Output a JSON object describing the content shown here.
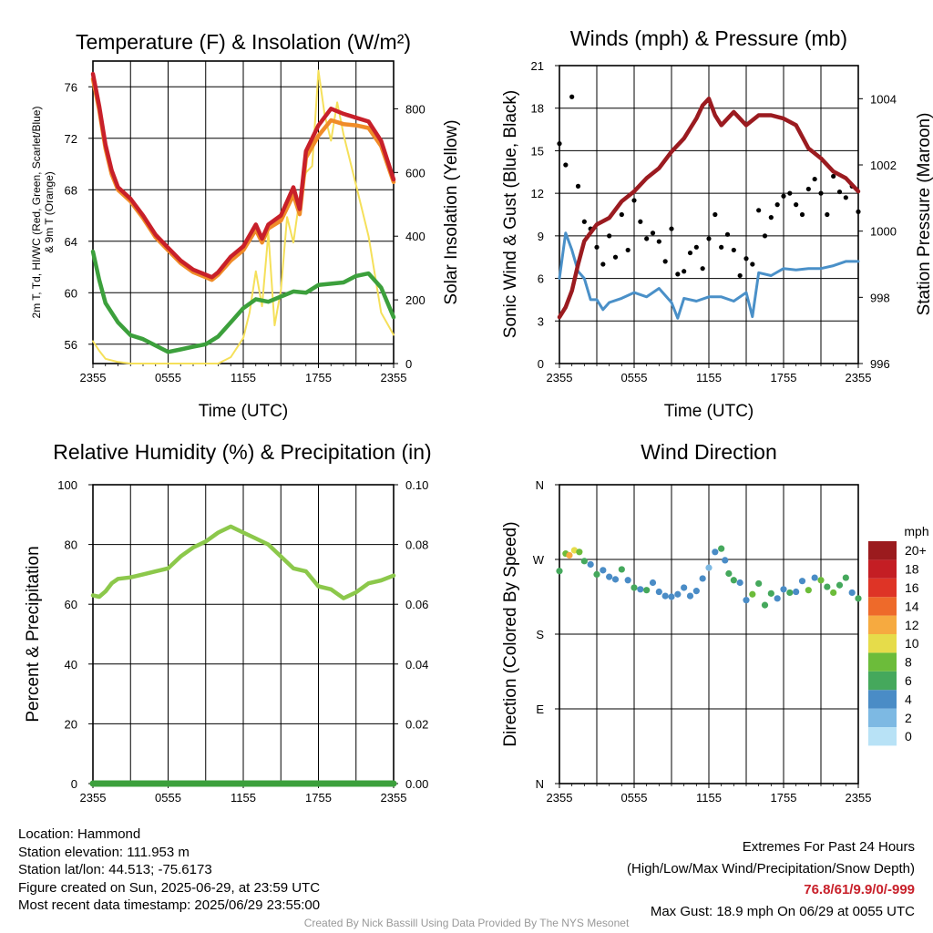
{
  "panels": [
    {
      "title": "Temperature (F) & Insolation (W/m²)"
    },
    {
      "title": "Winds (mph) & Pressure (mb)"
    },
    {
      "title": "Relative Humidity (%) & Precipitation (in)"
    },
    {
      "title": "Wind Direction"
    }
  ],
  "footer": {
    "location": "Location: Hammond",
    "elevation": "Station elevation: 111.953 m",
    "latlon": "Station lat/lon: 44.513; -75.6173",
    "created": "Figure created on Sun, 2025-06-29, at 23:59 UTC",
    "recent": "Most recent data timestamp: 2025/06/29 23:55:00",
    "extremes_title": "Extremes For Past 24 Hours",
    "extremes_sub": "(High/Low/Max Wind/Precipitation/Snow Depth)",
    "extremes_vals": "76.8/61/9.9/0/-999",
    "max_gust": "Max Gust: 18.9 mph On 06/29 at 0055 UTC",
    "credit": "Created By Nick Bassill Using Data Provided By The NYS Mesonet"
  },
  "chart_data": [
    {
      "type": "line",
      "title": "Temperature (F) & Insolation (W/m²)",
      "xlabel": "Time (UTC)",
      "ylabel": "2m T, Td, HI/WC (Red, Green, Scarlet/Blue) & 9m T (Orange)",
      "ylabel_right": "Solar Insolation (Yellow)",
      "x_ticks": [
        "2355",
        "0555",
        "1155",
        "1755",
        "2355"
      ],
      "xlim": [
        0,
        24
      ],
      "ylim": [
        54.5,
        78
      ],
      "y_ticks": [
        56,
        60,
        64,
        68,
        72,
        76
      ],
      "ylim_right": [
        0,
        950
      ],
      "y_ticks_right": [
        0,
        200,
        400,
        600,
        800
      ],
      "grid": true,
      "series": [
        {
          "name": "2m T",
          "axis": "left",
          "color": "#c8202a",
          "x": [
            0,
            0.5,
            1,
            1.5,
            2,
            3,
            4,
            5,
            6,
            7,
            8,
            9,
            9.5,
            10,
            11,
            12,
            13,
            13.5,
            14,
            15,
            16,
            16.5,
            17,
            18,
            19,
            20,
            21,
            22,
            23,
            24
          ],
          "values": [
            77,
            74.5,
            71.5,
            69.5,
            68.2,
            67.3,
            66,
            64.5,
            63.5,
            62.5,
            61.8,
            61.4,
            61.2,
            61.6,
            62.8,
            63.6,
            65.3,
            64.2,
            65.3,
            66,
            68.2,
            66.5,
            71,
            73,
            74.3,
            73.9,
            73.6,
            73.3,
            71.8,
            68.8
          ]
        },
        {
          "name": "9m T",
          "axis": "left",
          "color": "#f08c28",
          "x": [
            0,
            0.5,
            1,
            1.5,
            2,
            3,
            4,
            5,
            6,
            7,
            8,
            9,
            9.5,
            10,
            11,
            12,
            13,
            13.5,
            14,
            15,
            16,
            16.5,
            17,
            18,
            19,
            20,
            21,
            22,
            23,
            24
          ],
          "values": [
            76.6,
            74.2,
            71.2,
            69.2,
            68,
            67.1,
            65.8,
            64.3,
            63.3,
            62.3,
            61.6,
            61.2,
            61,
            61.4,
            62.5,
            63.3,
            64.9,
            63.9,
            65,
            65.6,
            67.6,
            66.1,
            70.5,
            72.2,
            73.4,
            73.1,
            73,
            72.8,
            71.4,
            68.6
          ]
        },
        {
          "name": "Td",
          "axis": "left",
          "color": "#3ca03c",
          "x": [
            0,
            0.5,
            1,
            2,
            3,
            4,
            5,
            6,
            7,
            8,
            9,
            10,
            11,
            12,
            13,
            14,
            15,
            16,
            17,
            18,
            19,
            20,
            21,
            22,
            23,
            24
          ],
          "values": [
            63.2,
            61,
            59.2,
            57.7,
            56.7,
            56.4,
            55.9,
            55.4,
            55.6,
            55.8,
            56,
            56.6,
            57.7,
            58.8,
            59.5,
            59.3,
            59.7,
            60.1,
            60,
            60.6,
            60.7,
            60.8,
            61.3,
            61.5,
            60.4,
            58.1
          ]
        },
        {
          "name": "Solar Insolation",
          "axis": "right",
          "color": "#f5e05a",
          "x": [
            0,
            0.5,
            1,
            2,
            3,
            4,
            5,
            6,
            7,
            8,
            9,
            10,
            11,
            12,
            12.5,
            13,
            13.5,
            14,
            14.5,
            15,
            15.5,
            16,
            16.5,
            17,
            17.5,
            18,
            18.5,
            19,
            19.5,
            20,
            21,
            22,
            23,
            24
          ],
          "values": [
            70,
            40,
            15,
            5,
            0,
            0,
            0,
            0,
            0,
            0,
            0,
            0,
            20,
            80,
            160,
            290,
            180,
            410,
            120,
            230,
            460,
            380,
            520,
            600,
            620,
            920,
            780,
            700,
            820,
            720,
            560,
            400,
            160,
            90
          ]
        }
      ]
    },
    {
      "type": "line",
      "title": "Winds (mph) & Pressure (mb)",
      "xlabel": "Time (UTC)",
      "ylabel": "Sonic Wind & Gust (Blue, Black)",
      "ylabel_right": "Station Pressure (Maroon)",
      "x_ticks": [
        "2355",
        "0555",
        "1155",
        "1755",
        "2355"
      ],
      "xlim": [
        0,
        24
      ],
      "ylim": [
        0,
        21
      ],
      "y_ticks": [
        0,
        3,
        6,
        9,
        12,
        15,
        18,
        21
      ],
      "ylim_right": [
        996,
        1005
      ],
      "y_ticks_right": [
        996,
        998,
        1000,
        1002,
        1004
      ],
      "grid": true,
      "series": [
        {
          "name": "Sonic Wind",
          "axis": "left",
          "color": "#4a90c8",
          "x": [
            0,
            0.5,
            1,
            1.5,
            2,
            2.5,
            3,
            3.5,
            4,
            5,
            6,
            7,
            8,
            9,
            9.5,
            10,
            11,
            12,
            13,
            14,
            15,
            15.5,
            16,
            17,
            18,
            19,
            20,
            21,
            22,
            23,
            24
          ],
          "values": [
            6,
            9.2,
            8,
            6.5,
            6,
            4.5,
            4.5,
            3.8,
            4.3,
            4.6,
            5,
            4.7,
            5.3,
            4.3,
            3.2,
            4.6,
            4.4,
            4.7,
            4.7,
            4.4,
            5,
            3.3,
            6.4,
            6.2,
            6.7,
            6.6,
            6.7,
            6.7,
            6.9,
            7.2,
            7.2
          ]
        },
        {
          "name": "Gust",
          "axis": "left",
          "color": "#000000",
          "x": [
            0,
            0.5,
            1,
            1.5,
            2,
            2.5,
            3,
            3.5,
            4,
            4.5,
            5,
            5.5,
            6,
            6.5,
            7,
            7.5,
            8,
            8.5,
            9,
            9.5,
            10,
            10.5,
            11,
            11.5,
            12,
            12.5,
            13,
            13.5,
            14,
            14.5,
            15,
            15.5,
            16,
            16.5,
            17,
            17.5,
            18,
            18.5,
            19,
            19.5,
            20,
            20.5,
            21,
            21.5,
            22,
            22.5,
            23,
            23.5,
            24
          ],
          "values": [
            15.5,
            14,
            18.8,
            12.5,
            10,
            9.5,
            8.2,
            7,
            9,
            7.5,
            10.5,
            8,
            11.5,
            10,
            8.8,
            9.2,
            8.6,
            7.2,
            9.5,
            6.3,
            6.5,
            7.8,
            8.2,
            6.7,
            8.8,
            10.5,
            8.2,
            9.1,
            8,
            6.2,
            7.4,
            7,
            10.8,
            9,
            10.3,
            11.2,
            11.8,
            12,
            11.2,
            10.5,
            12.3,
            13,
            12,
            10.5,
            13.2,
            12.1,
            11.7,
            12.5,
            10.7
          ]
        },
        {
          "name": "Station Pressure",
          "axis": "right",
          "color": "#9b1b20",
          "x": [
            0,
            0.5,
            1,
            1.5,
            2,
            3,
            4,
            5,
            6,
            7,
            8,
            9,
            10,
            11,
            11.5,
            12,
            12.5,
            13,
            14,
            15,
            16,
            17,
            18,
            19,
            20,
            21,
            22,
            23,
            24
          ],
          "values": [
            997.4,
            997.7,
            998.2,
            999,
            999.7,
            1000.2,
            1000.4,
            1000.9,
            1001.2,
            1001.6,
            1001.9,
            1002.4,
            1002.8,
            1003.4,
            1003.8,
            1004,
            1003.5,
            1003.2,
            1003.6,
            1003.2,
            1003.5,
            1003.5,
            1003.4,
            1003.2,
            1002.5,
            1002.2,
            1001.8,
            1001.6,
            1001.2
          ]
        }
      ]
    },
    {
      "type": "line",
      "title": "Relative Humidity (%) & Precipitation (in)",
      "xlabel": "",
      "ylabel": "Percent & Precipitation",
      "x_ticks": [
        "2355",
        "0555",
        "1155",
        "1755",
        "2355"
      ],
      "xlim": [
        0,
        24
      ],
      "ylim": [
        0,
        100
      ],
      "y_ticks": [
        0,
        20,
        40,
        60,
        80,
        100
      ],
      "ylim_right": [
        0,
        0.1
      ],
      "y_ticks_right": [
        "0.00",
        "0.02",
        "0.04",
        "0.06",
        "0.08",
        "0.10"
      ],
      "grid": true,
      "series": [
        {
          "name": "Relative Humidity",
          "axis": "left",
          "color": "#8cc84b",
          "x": [
            0,
            0.5,
            1,
            1.5,
            2,
            3,
            4,
            5,
            6,
            7,
            8,
            9,
            10,
            11,
            12,
            13,
            14,
            15,
            16,
            17,
            18,
            19,
            20,
            21,
            22,
            23,
            24
          ],
          "values": [
            63,
            62.5,
            64.3,
            67,
            68.5,
            69,
            70,
            71,
            72,
            76,
            79,
            81,
            84,
            86,
            84,
            82,
            80,
            76,
            72,
            71,
            66,
            65,
            62,
            64,
            67,
            68,
            69.6
          ]
        },
        {
          "name": "Precipitation",
          "axis": "right",
          "color": "#3ca03c",
          "x": [
            0,
            24
          ],
          "values": [
            0,
            0
          ]
        }
      ]
    },
    {
      "type": "scatter",
      "title": "Wind Direction",
      "ylabel": "Direction (Colored By Speed)",
      "x_ticks": [
        "2355",
        "0555",
        "1155",
        "1755",
        "2355"
      ],
      "xlim": [
        0,
        24
      ],
      "ylim": [
        0,
        360
      ],
      "y_ticks": [
        "N",
        "E",
        "S",
        "W",
        "N"
      ],
      "grid": true,
      "legend": {
        "title": "mph",
        "labels": [
          "0",
          "2",
          "4",
          "6",
          "8",
          "10",
          "12",
          "14",
          "16",
          "18",
          "20+"
        ],
        "colors": [
          "#b8e2f6",
          "#7db9e3",
          "#4a8cc6",
          "#45a85c",
          "#6cbc3a",
          "#e6dc4a",
          "#f6aa40",
          "#ee6a2a",
          "#de3426",
          "#c41e24",
          "#9b1b1e"
        ]
      },
      "points": {
        "x": [
          0,
          0.5,
          0.8,
          1.2,
          1.6,
          2,
          2.5,
          3,
          3.5,
          4,
          4.5,
          5,
          5.5,
          6,
          6.5,
          7,
          7.5,
          8,
          8.5,
          9,
          9.5,
          10,
          10.5,
          11,
          11.5,
          12,
          12.5,
          13,
          13.3,
          13.6,
          14,
          14.5,
          15,
          15.5,
          16,
          16.5,
          17,
          17.5,
          18,
          18.5,
          19,
          19.5,
          20,
          20.5,
          21,
          21.5,
          22,
          22.5,
          23,
          23.5,
          24
        ],
        "y": [
          256,
          277,
          275,
          281,
          279,
          268,
          264,
          252,
          257,
          249,
          246,
          258,
          245,
          236,
          234,
          233,
          242,
          231,
          226,
          225,
          228,
          236,
          226,
          232,
          247,
          260,
          279,
          283,
          269,
          253,
          245,
          242,
          221,
          228,
          241,
          215,
          229,
          223,
          234,
          230,
          231,
          244,
          233,
          248,
          245,
          237,
          230,
          239,
          248,
          230,
          223
        ],
        "speeds": [
          6,
          7,
          11,
          9,
          8,
          6,
          4,
          5,
          4,
          3,
          4,
          5,
          4,
          6,
          4,
          5,
          4,
          3,
          4,
          4,
          3,
          4,
          4,
          3,
          4,
          2,
          4,
          6,
          4,
          5,
          5,
          3,
          4,
          7,
          5,
          6,
          5,
          4,
          4,
          6,
          4,
          3,
          7,
          4,
          7,
          6,
          8,
          5,
          6,
          4,
          5
        ]
      }
    }
  ]
}
